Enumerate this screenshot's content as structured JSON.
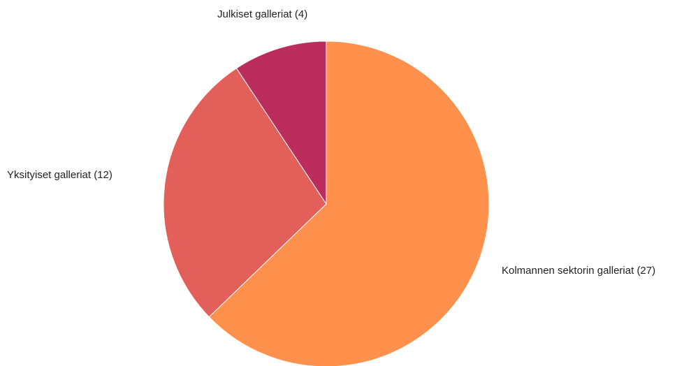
{
  "chart_data": {
    "type": "pie",
    "title": "",
    "start_angle_deg": 0,
    "direction": "clockwise",
    "slices": [
      {
        "label": "Kolmannen sektorin galleriat (27)",
        "name": "Kolmannen sektorin galleriat",
        "value": 27,
        "color": "#ff914d"
      },
      {
        "label": "Yksityiset galleriat (12)",
        "name": "Yksityiset galleriat",
        "value": 12,
        "color": "#e35f59"
      },
      {
        "label": "Julkiset galleriat (4)",
        "name": "Julkiset galleriat",
        "value": 4,
        "color": "#ba2d5c"
      }
    ]
  }
}
